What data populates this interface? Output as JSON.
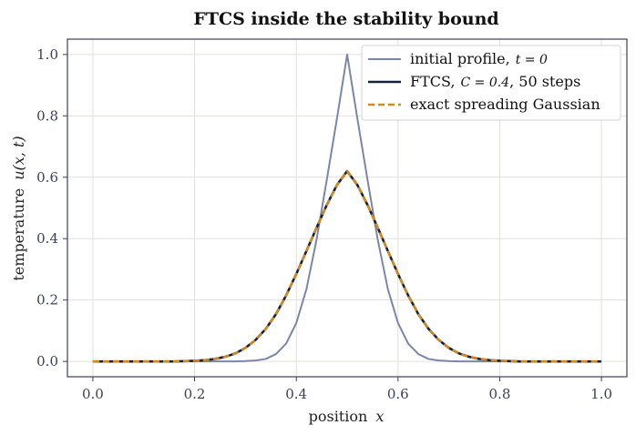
{
  "chart_data": {
    "type": "line",
    "title": "FTCS inside the stability bound",
    "xlabel": "position",
    "xlabel_var": "x",
    "ylabel": "temperature",
    "ylabel_var": "u(x, t)",
    "xlim": [
      -0.05,
      1.05
    ],
    "ylim": [
      -0.05,
      1.05
    ],
    "xticks": [
      0.0,
      0.2,
      0.4,
      0.6,
      0.8,
      1.0
    ],
    "xtick_labels": [
      "0.0",
      "0.2",
      "0.4",
      "0.6",
      "0.8",
      "1.0"
    ],
    "yticks": [
      0.0,
      0.2,
      0.4,
      0.6,
      0.8,
      1.0
    ],
    "ytick_labels": [
      "0.0",
      "0.2",
      "0.4",
      "0.6",
      "0.8",
      "1.0"
    ],
    "grid": true,
    "legend_placement": "top-right",
    "x": [
      0.0,
      0.02,
      0.04,
      0.06,
      0.08,
      0.1,
      0.12,
      0.14,
      0.16,
      0.18,
      0.2,
      0.22,
      0.24,
      0.26,
      0.28,
      0.3,
      0.32,
      0.34,
      0.36,
      0.38,
      0.4,
      0.42,
      0.44,
      0.46,
      0.48,
      0.5,
      0.52,
      0.54,
      0.56,
      0.58,
      0.6,
      0.62,
      0.64,
      0.66,
      0.68,
      0.7,
      0.72,
      0.74,
      0.76,
      0.78,
      0.8,
      0.82,
      0.84,
      0.86,
      0.88,
      0.9,
      0.92,
      0.94,
      0.96,
      0.98,
      1.0
    ],
    "series": [
      {
        "name": "initial profile, t = 0",
        "legend_text": "initial profile,",
        "legend_math": "t = 0",
        "color": "#7b87a8",
        "style": "solid",
        "values": [
          0.0,
          0.0,
          0.0,
          0.0,
          0.0,
          0.0,
          0.0,
          0.0,
          0.0,
          0.0,
          0.0,
          0.0,
          0.0,
          0.0,
          0.0,
          0.001,
          0.003,
          0.008,
          0.024,
          0.058,
          0.125,
          0.236,
          0.398,
          0.592,
          0.792,
          1.0,
          0.792,
          0.592,
          0.398,
          0.236,
          0.125,
          0.058,
          0.024,
          0.008,
          0.003,
          0.001,
          0.0,
          0.0,
          0.0,
          0.0,
          0.0,
          0.0,
          0.0,
          0.0,
          0.0,
          0.0,
          0.0,
          0.0,
          0.0,
          0.0,
          0.0
        ]
      },
      {
        "name": "FTCS, C = 0.4, 50 steps",
        "legend_text": "FTCS,",
        "legend_math": "C = 0.4",
        "legend_suffix": ", 50 steps",
        "color": "#14213d",
        "style": "solid",
        "values": [
          0.0,
          0.0,
          0.0,
          0.0,
          0.0,
          0.0,
          0.0,
          0.0,
          0.0,
          0.001,
          0.002,
          0.004,
          0.008,
          0.015,
          0.026,
          0.044,
          0.07,
          0.106,
          0.154,
          0.215,
          0.285,
          0.36,
          0.436,
          0.51,
          0.575,
          0.62,
          0.575,
          0.51,
          0.436,
          0.36,
          0.285,
          0.215,
          0.154,
          0.106,
          0.07,
          0.044,
          0.026,
          0.015,
          0.008,
          0.004,
          0.002,
          0.001,
          0.0,
          0.0,
          0.0,
          0.0,
          0.0,
          0.0,
          0.0,
          0.0,
          0.0
        ]
      },
      {
        "name": "exact spreading Gaussian",
        "legend_text": "exact spreading Gaussian",
        "color": "#d4891a",
        "style": "dashed",
        "values": [
          0.0,
          0.0,
          0.0,
          0.0,
          0.0,
          0.0,
          0.0,
          0.0,
          0.0,
          0.001,
          0.002,
          0.004,
          0.008,
          0.015,
          0.026,
          0.044,
          0.07,
          0.106,
          0.154,
          0.215,
          0.285,
          0.36,
          0.436,
          0.51,
          0.575,
          0.62,
          0.575,
          0.51,
          0.436,
          0.36,
          0.285,
          0.215,
          0.154,
          0.106,
          0.07,
          0.044,
          0.026,
          0.015,
          0.008,
          0.004,
          0.002,
          0.001,
          0.0,
          0.0,
          0.0,
          0.0,
          0.0,
          0.0,
          0.0,
          0.0,
          0.0
        ]
      }
    ]
  }
}
